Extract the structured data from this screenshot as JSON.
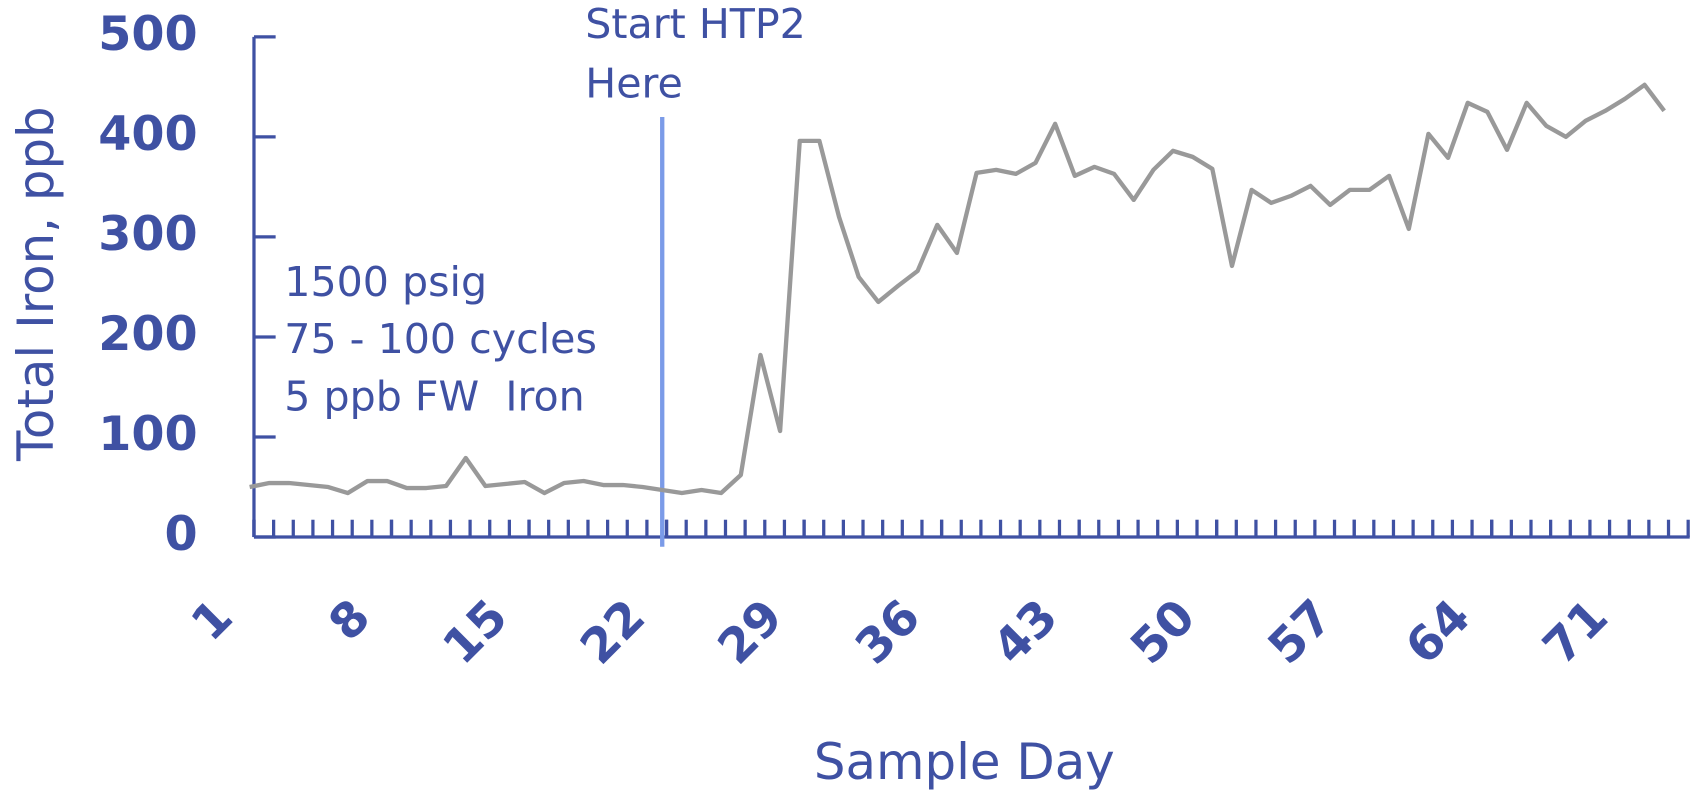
{
  "chart_data": {
    "type": "line",
    "y_label": "Total Iron, ppb",
    "x_label": "Sample Day",
    "annotations": [
      "1500 psig",
      "75 - 100 cycles",
      "5 ppb FW  Iron"
    ],
    "marker_label": [
      "Start HTP2",
      "Here"
    ],
    "marker_x": 22,
    "marker_color": "#7b9be8",
    "axis_color": "#3f51a3",
    "x": [
      1,
      2,
      3,
      4,
      5,
      6,
      7,
      8,
      9,
      10,
      11,
      12,
      13,
      14,
      15,
      16,
      17,
      18,
      19,
      20,
      21,
      22,
      23,
      24,
      25,
      26,
      27,
      28,
      29,
      30,
      31,
      32,
      33,
      34,
      35,
      36,
      37,
      38,
      39,
      40,
      41,
      42,
      43,
      44,
      45,
      46,
      47,
      48,
      49,
      50,
      51,
      52,
      53,
      54,
      55,
      56,
      57,
      58,
      59,
      60,
      61,
      62,
      63,
      64,
      65,
      66,
      67,
      68,
      69,
      70,
      71,
      72,
      73
    ],
    "series": [
      {
        "name": "Total Iron",
        "color": "#999999",
        "values": [
          50,
          54,
          54,
          52,
          50,
          44,
          56,
          56,
          49,
          49,
          51,
          79,
          51,
          53,
          55,
          44,
          54,
          56,
          52,
          52,
          50,
          47,
          44,
          47,
          44,
          62,
          182,
          106,
          396,
          396,
          320,
          260,
          235,
          251,
          266,
          312,
          284,
          364,
          367,
          363,
          374,
          413,
          361,
          370,
          363,
          337,
          367,
          386,
          380,
          368,
          271,
          347,
          334,
          341,
          351,
          332,
          347,
          347,
          361,
          308,
          403,
          379,
          434,
          425,
          387,
          434,
          411,
          400,
          416,
          426,
          438,
          452,
          426
        ]
      }
    ],
    "xlim": [
      1,
      74.3
    ],
    "xticks": [
      1,
      8,
      15,
      22,
      29,
      36,
      43,
      50,
      57,
      64,
      71
    ],
    "ylim": [
      0,
      500
    ],
    "yticks": [
      0,
      100,
      200,
      300,
      400,
      500
    ]
  }
}
